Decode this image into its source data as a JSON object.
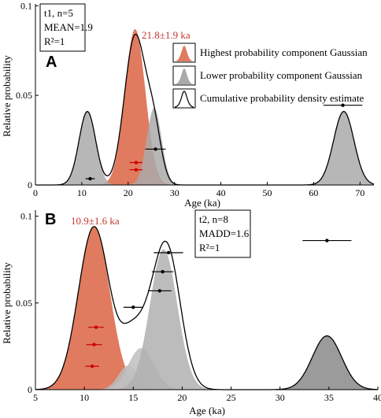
{
  "chart_data": [
    {
      "type": "area",
      "panel_label": "A",
      "xlabel": "Age (ka)",
      "ylabel": "Relative probability",
      "xlim": [
        0,
        73
      ],
      "ylim": [
        0,
        0.101
      ],
      "xticks": [
        0,
        10,
        20,
        30,
        40,
        50,
        60,
        70
      ],
      "yticks": [
        0,
        0.05,
        0.1
      ],
      "ytick_labels": [
        "0",
        "0.05",
        "0.1"
      ],
      "stats": [
        "t1, n=5",
        "MEAN=1.9",
        "R²=1"
      ],
      "annotation": {
        "text": "21.8±1.9 ka",
        "color": "#c0392b",
        "x": 21.8,
        "y": 0.089
      },
      "legend": {
        "placement": "right",
        "items": [
          {
            "label": "Highest probability component Gaussian",
            "kind": "salmon"
          },
          {
            "label": "Lower probability component Gaussian",
            "kind": "gray"
          },
          {
            "label": "Cumulative probability density estimate",
            "kind": "outline"
          }
        ]
      },
      "gaussians": [
        {
          "role": "highest",
          "mu": 21.5,
          "sigma": 2.2,
          "peak": 0.087,
          "color": "#e07b5f"
        },
        {
          "role": "lower",
          "mu": 11.2,
          "sigma": 1.8,
          "peak": 0.041,
          "color": "#aaaaaa"
        },
        {
          "role": "lower",
          "mu": 25.6,
          "sigma": 1.6,
          "peak": 0.043,
          "color": "#aaaaaa"
        },
        {
          "role": "lower",
          "mu": 66.5,
          "sigma": 2.2,
          "peak": 0.041,
          "color": "#aaaaaa"
        }
      ],
      "cumulative": {
        "components": [
          {
            "mu": 11.2,
            "sigma": 1.8,
            "peak": 0.041
          },
          {
            "mu": 21.5,
            "sigma": 2.3,
            "peak": 0.083
          },
          {
            "mu": 25.6,
            "sigma": 1.6,
            "peak": 0.027
          },
          {
            "mu": 66.5,
            "sigma": 2.2,
            "peak": 0.041
          }
        ]
      },
      "points": [
        {
          "x": 11.8,
          "err": 1.0,
          "y": 0.0035,
          "color": "#000000"
        },
        {
          "x": 21.7,
          "err": 1.4,
          "y": 0.0085,
          "color": "#cc0000"
        },
        {
          "x": 21.7,
          "err": 1.4,
          "y": 0.0125,
          "color": "#cc0000"
        },
        {
          "x": 25.9,
          "err": 2.2,
          "y": 0.02,
          "color": "#000000"
        },
        {
          "x": 66.3,
          "err": 4.2,
          "y": 0.0445,
          "color": "#000000"
        }
      ]
    },
    {
      "type": "area",
      "panel_label": "B",
      "xlabel": "Age (ka)",
      "ylabel": "Relative probability",
      "xlim": [
        5,
        40
      ],
      "ylim": [
        0,
        0.1035
      ],
      "xticks": [
        5,
        10,
        15,
        20,
        25,
        30,
        35,
        40
      ],
      "yticks": [
        0,
        0.05,
        0.1
      ],
      "ytick_labels": [
        "0",
        "0.05",
        "0.1"
      ],
      "stats": [
        "t2, n=8",
        "MADD=1.6",
        "R²=1"
      ],
      "annotation": {
        "text": "10.9±1.6 ka",
        "color": "#c0392b",
        "x": 11.0,
        "y": 0.095
      },
      "gaussians": [
        {
          "role": "highest",
          "mu": 11.0,
          "sigma": 1.6,
          "peak": 0.094,
          "color": "#e07b5f"
        },
        {
          "role": "lower",
          "mu": 14.5,
          "sigma": 1.0,
          "peak": 0.014,
          "color": "#bbbbbb"
        },
        {
          "role": "lower",
          "mu": 15.8,
          "sigma": 1.3,
          "peak": 0.024,
          "color": "#c0c0c0"
        },
        {
          "role": "lower",
          "mu": 18.1,
          "sigma": 1.4,
          "peak": 0.081,
          "color": "#b0b0b0"
        },
        {
          "role": "lower",
          "mu": 34.8,
          "sigma": 1.5,
          "peak": 0.031,
          "color": "#8a8a8a"
        }
      ],
      "cumulative": {
        "components": [
          {
            "mu": 11.0,
            "sigma": 1.6,
            "peak": 0.094
          },
          {
            "mu": 14.5,
            "sigma": 1.0,
            "peak": 0.014
          },
          {
            "mu": 15.8,
            "sigma": 1.3,
            "peak": 0.024
          },
          {
            "mu": 18.4,
            "sigma": 1.4,
            "peak": 0.082
          },
          {
            "mu": 34.8,
            "sigma": 1.5,
            "peak": 0.031
          }
        ]
      },
      "points": [
        {
          "x": 10.8,
          "err": 0.7,
          "y": 0.0135,
          "color": "#cc0000"
        },
        {
          "x": 11.0,
          "err": 0.8,
          "y": 0.026,
          "color": "#cc0000"
        },
        {
          "x": 11.2,
          "err": 0.8,
          "y": 0.036,
          "color": "#cc0000"
        },
        {
          "x": 15.0,
          "err": 1.0,
          "y": 0.0475,
          "color": "#000000"
        },
        {
          "x": 17.7,
          "err": 1.2,
          "y": 0.057,
          "color": "#000000"
        },
        {
          "x": 18.0,
          "err": 1.1,
          "y": 0.068,
          "color": "#000000"
        },
        {
          "x": 18.6,
          "err": 1.5,
          "y": 0.079,
          "color": "#000000"
        },
        {
          "x": 34.8,
          "err": 2.5,
          "y": 0.086,
          "color": "#000000"
        }
      ]
    }
  ]
}
